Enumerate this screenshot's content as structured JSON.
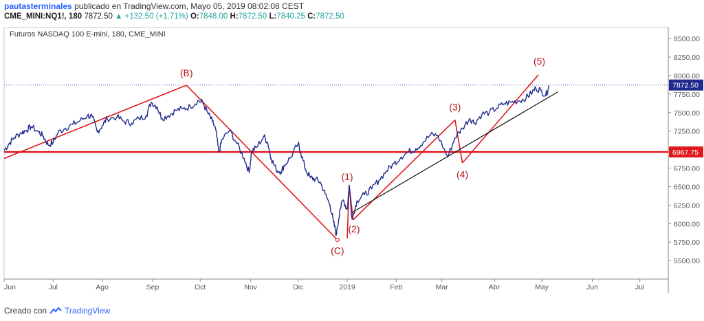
{
  "header": {
    "author": "pautasterminales",
    "published": "publicado en TradingView.com, Mayo 05, 2019 08:02:08 CEST",
    "symbol": "CME_MINI:NQ1!, 180",
    "last": "7872.50",
    "change": "▲ +132.50 (+1.71%)",
    "o_label": "O:",
    "o": "7848.00",
    "h_label": "H:",
    "h": "7872.50",
    "l_label": "L:",
    "l": "7840.25",
    "c_label": "C:",
    "c": "7872.50"
  },
  "footer": {
    "prefix": "Creado con",
    "brand": "TradingView"
  },
  "colors": {
    "candles": "#1f2a8c",
    "wave": "#e0191f",
    "trend": "#111111",
    "ohlc": "#26a69a",
    "price_badge": "#1f2a8c",
    "level_badge": "#e0191f"
  },
  "chart_data": {
    "type": "line",
    "title": "Futuros NASDAQ 100 E-mini, 180, CME_MINI",
    "xlabel": "",
    "ylabel": "",
    "ylim": [
      5250,
      8650
    ],
    "x_ticks": [
      "Jun",
      "Jul",
      "Ago",
      "Sep",
      "Oct",
      "Nov",
      "Dic",
      "2019",
      "Feb",
      "Mar",
      "Abr",
      "May",
      "Jun",
      "Jul"
    ],
    "x_tick_pos": [
      0.0,
      1.0,
      2.0,
      3.03,
      4.0,
      5.03,
      6.0,
      7.0,
      8.0,
      8.93,
      10.0,
      10.97,
      12.0,
      12.97
    ],
    "y_ticks": [
      "5500.00",
      "5750.00",
      "6000.00",
      "6250.00",
      "6500.00",
      "6750.00",
      "7000.00",
      "7250.00",
      "7500.00",
      "7750.00",
      "8000.00",
      "8250.00",
      "8500.00"
    ],
    "price_series": [
      [
        0.0,
        6990
      ],
      [
        0.1,
        7080
      ],
      [
        0.2,
        7160
      ],
      [
        0.35,
        7230
      ],
      [
        0.45,
        7260
      ],
      [
        0.55,
        7310
      ],
      [
        0.7,
        7240
      ],
      [
        0.8,
        7180
      ],
      [
        0.9,
        7060
      ],
      [
        1.0,
        7100
      ],
      [
        1.1,
        7230
      ],
      [
        1.25,
        7290
      ],
      [
        1.4,
        7340
      ],
      [
        1.55,
        7390
      ],
      [
        1.7,
        7460
      ],
      [
        1.8,
        7440
      ],
      [
        1.9,
        7240
      ],
      [
        2.0,
        7320
      ],
      [
        2.1,
        7420
      ],
      [
        2.3,
        7440
      ],
      [
        2.45,
        7380
      ],
      [
        2.6,
        7360
      ],
      [
        2.75,
        7420
      ],
      [
        2.9,
        7460
      ],
      [
        3.0,
        7640
      ],
      [
        3.12,
        7580
      ],
      [
        3.22,
        7420
      ],
      [
        3.35,
        7460
      ],
      [
        3.5,
        7530
      ],
      [
        3.65,
        7550
      ],
      [
        3.8,
        7580
      ],
      [
        3.95,
        7660
      ],
      [
        4.05,
        7640
      ],
      [
        4.15,
        7500
      ],
      [
        4.25,
        7380
      ],
      [
        4.32,
        7260
      ],
      [
        4.38,
        6960
      ],
      [
        4.45,
        7140
      ],
      [
        4.6,
        7260
      ],
      [
        4.75,
        7080
      ],
      [
        4.9,
        6880
      ],
      [
        5.0,
        6690
      ],
      [
        5.05,
        6980
      ],
      [
        5.15,
        7030
      ],
      [
        5.3,
        7180
      ],
      [
        5.38,
        7090
      ],
      [
        5.45,
        6880
      ],
      [
        5.55,
        6730
      ],
      [
        5.65,
        6700
      ],
      [
        5.72,
        6790
      ],
      [
        5.85,
        6900
      ],
      [
        6.0,
        7080
      ],
      [
        6.05,
        6960
      ],
      [
        6.15,
        6730
      ],
      [
        6.25,
        6620
      ],
      [
        6.35,
        6600
      ],
      [
        6.45,
        6560
      ],
      [
        6.55,
        6400
      ],
      [
        6.65,
        6250
      ],
      [
        6.72,
        6020
      ],
      [
        6.78,
        5850
      ],
      [
        6.85,
        6190
      ],
      [
        6.92,
        6320
      ],
      [
        7.0,
        6190
      ],
      [
        7.04,
        6520
      ],
      [
        7.1,
        6060
      ],
      [
        7.2,
        6310
      ],
      [
        7.35,
        6390
      ],
      [
        7.5,
        6470
      ],
      [
        7.65,
        6590
      ],
      [
        7.8,
        6710
      ],
      [
        7.95,
        6810
      ],
      [
        8.1,
        6900
      ],
      [
        8.25,
        6970
      ],
      [
        8.4,
        7010
      ],
      [
        8.55,
        7100
      ],
      [
        8.7,
        7200
      ],
      [
        8.85,
        7190
      ],
      [
        9.05,
        6900
      ],
      [
        9.2,
        7160
      ],
      [
        9.35,
        7290
      ],
      [
        9.5,
        7420
      ],
      [
        9.6,
        7360
      ],
      [
        9.75,
        7480
      ],
      [
        9.9,
        7500
      ],
      [
        10.05,
        7560
      ],
      [
        10.2,
        7620
      ],
      [
        10.35,
        7640
      ],
      [
        10.5,
        7660
      ],
      [
        10.65,
        7700
      ],
      [
        10.75,
        7760
      ],
      [
        10.85,
        7830
      ],
      [
        10.95,
        7800
      ],
      [
        11.05,
        7730
      ],
      [
        11.12,
        7873
      ]
    ],
    "wave_segments": [
      [
        [
          0.0,
          6880
        ],
        [
          3.72,
          7870
        ]
      ],
      [
        [
          3.72,
          7870
        ],
        [
          6.8,
          5780
        ]
      ],
      [
        [
          7.0,
          5800
        ],
        [
          7.04,
          6520
        ]
      ],
      [
        [
          7.04,
          6520
        ],
        [
          7.12,
          6050
        ]
      ],
      [
        [
          7.12,
          6050
        ],
        [
          9.2,
          7400
        ]
      ],
      [
        [
          9.2,
          7400
        ],
        [
          9.35,
          6820
        ]
      ],
      [
        [
          9.35,
          6820
        ],
        [
          10.9,
          8010
        ]
      ]
    ],
    "trendline": [
      [
        7.1,
        6150
      ],
      [
        11.3,
        7780
      ]
    ],
    "levels": [
      {
        "value": 6967.75,
        "label": "6967.75"
      },
      {
        "value": 7872.5,
        "label": "7872.50"
      }
    ],
    "annotations": [
      {
        "text": "(B)",
        "x": 3.72,
        "y": 7990
      },
      {
        "text": "(C)",
        "x": 6.8,
        "y": 5590
      },
      {
        "text": "(1)",
        "x": 7.0,
        "y": 6590
      },
      {
        "text": "(2)",
        "x": 7.14,
        "y": 5880
      },
      {
        "text": "(3)",
        "x": 9.2,
        "y": 7530
      },
      {
        "text": "(4)",
        "x": 9.35,
        "y": 6620
      },
      {
        "text": "(5)",
        "x": 10.92,
        "y": 8150
      }
    ]
  }
}
